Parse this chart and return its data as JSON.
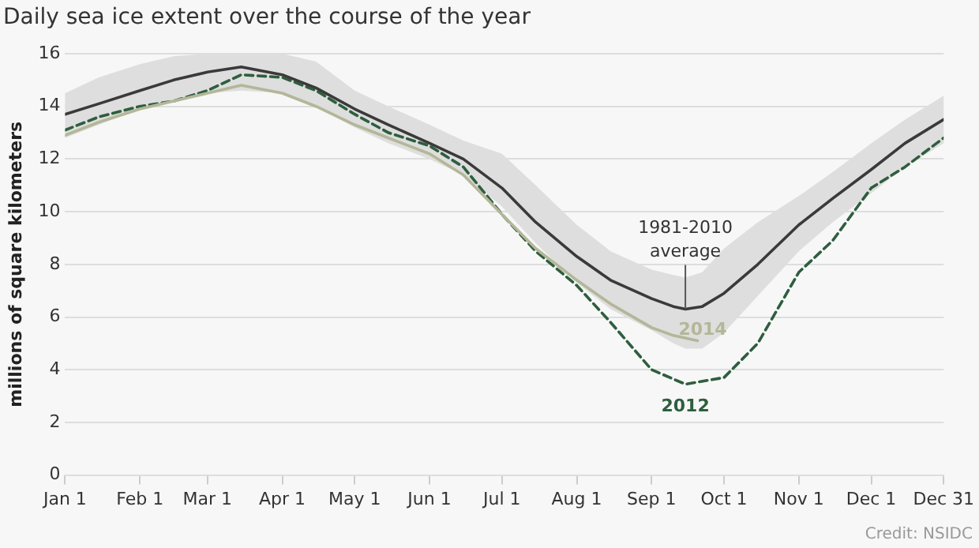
{
  "chart_data": {
    "type": "line",
    "title": "Daily sea ice extent over the course of the year",
    "ylabel": "millions of square kilometers",
    "annotations": [
      "Credit: NSIDC"
    ],
    "x": [
      "--01-01",
      "--01-15",
      "--02-01",
      "--02-15",
      "--03-01",
      "--03-15",
      "--04-01",
      "--04-15",
      "--05-01",
      "--05-15",
      "--06-01",
      "--06-15",
      "--07-01",
      "--07-15",
      "--08-01",
      "--08-15",
      "--09-01",
      "--09-10",
      "--09-15",
      "--09-22",
      "--10-01",
      "--10-15",
      "--11-01",
      "--11-15",
      "--12-01",
      "--12-15",
      "--12-31"
    ],
    "series": [
      {
        "name": "1981-2010 average",
        "color": "#3a3a3a",
        "values": [
          13.7,
          14.1,
          14.6,
          15.0,
          15.3,
          15.5,
          15.2,
          14.7,
          13.9,
          13.3,
          12.6,
          12.0,
          10.9,
          9.6,
          8.3,
          7.4,
          6.7,
          6.4,
          6.3,
          6.4,
          6.9,
          8.0,
          9.5,
          10.5,
          11.6,
          12.6,
          13.5
        ],
        "upper": [
          14.5,
          15.1,
          15.6,
          15.9,
          16.0,
          16.0,
          16.0,
          15.7,
          14.6,
          14.0,
          13.3,
          12.7,
          12.2,
          11.0,
          9.5,
          8.5,
          7.8,
          7.6,
          7.5,
          7.7,
          8.6,
          9.6,
          10.6,
          11.5,
          12.6,
          13.5,
          14.4
        ],
        "lower": [
          12.8,
          13.3,
          13.9,
          14.2,
          14.5,
          14.6,
          14.5,
          14.0,
          13.2,
          12.6,
          12.0,
          11.4,
          10.2,
          8.8,
          7.3,
          6.3,
          5.5,
          5.0,
          4.8,
          4.8,
          5.4,
          6.8,
          8.5,
          9.6,
          10.7,
          11.7,
          12.6
        ]
      },
      {
        "name": "2014",
        "color": "#b3b798",
        "x": [
          "--01-01",
          "--01-15",
          "--02-01",
          "--02-15",
          "--03-01",
          "--03-15",
          "--04-01",
          "--04-15",
          "--05-01",
          "--05-15",
          "--06-01",
          "--06-15",
          "--07-01",
          "--07-15",
          "--08-01",
          "--08-15",
          "--09-01",
          "--09-10",
          "--09-20"
        ],
        "values": [
          12.9,
          13.4,
          13.9,
          14.2,
          14.5,
          14.8,
          14.5,
          14.0,
          13.3,
          12.8,
          12.2,
          11.4,
          9.9,
          8.6,
          7.4,
          6.5,
          5.6,
          5.3,
          5.1
        ]
      },
      {
        "name": "2012",
        "color": "#2e5e3e",
        "line_style": "dashed",
        "x": [
          "--01-01",
          "--01-15",
          "--02-01",
          "--02-15",
          "--03-01",
          "--03-15",
          "--04-01",
          "--04-15",
          "--05-01",
          "--05-15",
          "--06-01",
          "--06-15",
          "--07-01",
          "--07-15",
          "--08-01",
          "--08-15",
          "--09-01",
          "--09-15",
          "--10-01",
          "--10-15",
          "--11-01",
          "--11-15",
          "--12-01",
          "--12-15",
          "--12-31"
        ],
        "values": [
          13.1,
          13.6,
          14.0,
          14.2,
          14.6,
          15.2,
          15.1,
          14.6,
          13.7,
          13.0,
          12.5,
          11.7,
          9.9,
          8.5,
          7.2,
          5.8,
          4.0,
          3.45,
          3.7,
          5.0,
          7.7,
          8.9,
          10.9,
          11.7,
          12.8
        ]
      }
    ],
    "xlim": [
      "--01-01",
      "--12-31"
    ],
    "xticks": [
      {
        "value": "--01-01",
        "label": "Jan 1"
      },
      {
        "value": "--02-01",
        "label": "Feb 1"
      },
      {
        "value": "--03-01",
        "label": "Mar 1"
      },
      {
        "value": "--04-01",
        "label": "Apr 1"
      },
      {
        "value": "--05-01",
        "label": "May 1"
      },
      {
        "value": "--06-01",
        "label": "Jun 1"
      },
      {
        "value": "--07-01",
        "label": "Jul 1"
      },
      {
        "value": "--08-01",
        "label": "Aug 1"
      },
      {
        "value": "--09-01",
        "label": "Sep 1"
      },
      {
        "value": "--10-01",
        "label": "Oct 1"
      },
      {
        "value": "--11-01",
        "label": "Nov 1"
      },
      {
        "value": "--12-01",
        "label": "Dec 1"
      },
      {
        "value": "--12-31",
        "label": "Dec 31"
      }
    ],
    "ylim": [
      0,
      16
    ],
    "yticks": [
      0,
      2,
      4,
      6,
      8,
      10,
      12,
      14,
      16
    ],
    "grid": "y",
    "legend": false,
    "marker": "none"
  }
}
